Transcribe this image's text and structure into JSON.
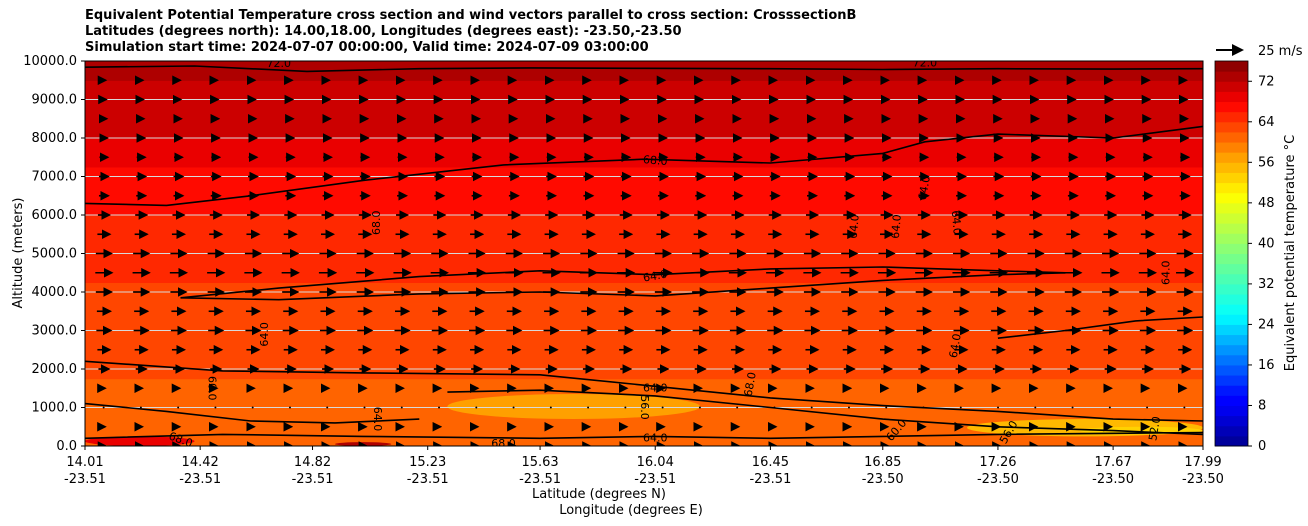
{
  "chart_data": {
    "type": "heatmap",
    "title_lines": [
      "Equivalent Potential Temperature cross section and wind vectors parallel to cross section: CrosssectionB",
      "Latitudes (degrees north): 14.00,18.00, Longitudes (degrees east): -23.50,-23.50",
      "Simulation start time: 2024-07-07 00:00:00, Valid time: 2024-07-09 03:00:00"
    ],
    "ylabel": "Altitude (meters)",
    "xlabel_lat": "Latitude (degrees N)",
    "xlabel_lon": "Longitude (degrees E)",
    "ylim": [
      0,
      10000
    ],
    "yticks": [
      "0.0",
      "1000.0",
      "2000.0",
      "3000.0",
      "4000.0",
      "5000.0",
      "6000.0",
      "7000.0",
      "8000.0",
      "9000.0",
      "10000.0"
    ],
    "xlim": [
      14.01,
      17.99
    ],
    "xticks": [
      {
        "lat": "14.01",
        "lon": "-23.51",
        "value": 14.01
      },
      {
        "lat": "14.42",
        "lon": "-23.51",
        "value": 14.42
      },
      {
        "lat": "14.82",
        "lon": "-23.51",
        "value": 14.82
      },
      {
        "lat": "15.23",
        "lon": "-23.51",
        "value": 15.23
      },
      {
        "lat": "15.63",
        "lon": "-23.51",
        "value": 15.63
      },
      {
        "lat": "16.04",
        "lon": "-23.51",
        "value": 16.04
      },
      {
        "lat": "16.45",
        "lon": "-23.51",
        "value": 16.45
      },
      {
        "lat": "16.85",
        "lon": "-23.50",
        "value": 16.85
      },
      {
        "lat": "17.26",
        "lon": "-23.50",
        "value": 17.26
      },
      {
        "lat": "17.67",
        "lon": "-23.50",
        "value": 17.67
      },
      {
        "lat": "17.99",
        "lon": "-23.50",
        "value": 17.99
      }
    ],
    "colorbar": {
      "label": "Equivalent potential temperature °C",
      "min": 0,
      "max": 76,
      "step": 2,
      "ticks": [
        "0",
        "8",
        "16",
        "24",
        "32",
        "40",
        "48",
        "56",
        "64",
        "72"
      ]
    },
    "quiver_key": "25 m/s",
    "field_profile": [
      {
        "alt": 0,
        "value": 61
      },
      {
        "alt": 500,
        "value": 60
      },
      {
        "alt": 1000,
        "value": 61
      },
      {
        "alt": 1500,
        "value": 61.5
      },
      {
        "alt": 2000,
        "value": 62.5
      },
      {
        "alt": 2500,
        "value": 63
      },
      {
        "alt": 3000,
        "value": 63.5
      },
      {
        "alt": 4000,
        "value": 63.5
      },
      {
        "alt": 4500,
        "value": 64.5
      },
      {
        "alt": 5000,
        "value": 65
      },
      {
        "alt": 6000,
        "value": 66
      },
      {
        "alt": 7000,
        "value": 67.5
      },
      {
        "alt": 7500,
        "value": 68.5
      },
      {
        "alt": 8000,
        "value": 70
      },
      {
        "alt": 9000,
        "value": 71.5
      },
      {
        "alt": 10000,
        "value": 72.5
      }
    ],
    "contours": [
      {
        "level": "72.0",
        "points": [
          [
            14.01,
            9840
          ],
          [
            14.4,
            9870
          ],
          [
            14.8,
            9730
          ],
          [
            15.2,
            9800
          ],
          [
            15.6,
            9820
          ],
          [
            16.0,
            9810
          ],
          [
            16.45,
            9800
          ],
          [
            16.85,
            9780
          ],
          [
            17.26,
            9800
          ],
          [
            17.67,
            9790
          ],
          [
            17.99,
            9800
          ]
        ]
      },
      {
        "level": "68.0",
        "points": [
          [
            14.01,
            6300
          ],
          [
            14.3,
            6250
          ],
          [
            14.6,
            6500
          ],
          [
            15.0,
            6900
          ],
          [
            15.5,
            7300
          ],
          [
            16.0,
            7450
          ],
          [
            16.45,
            7350
          ],
          [
            16.85,
            7600
          ],
          [
            17.0,
            7900
          ],
          [
            17.26,
            8100
          ],
          [
            17.67,
            8000
          ],
          [
            17.99,
            8300
          ]
        ]
      },
      {
        "level": "64.0",
        "points": [
          [
            14.35,
            3850
          ],
          [
            14.7,
            4100
          ],
          [
            15.2,
            4400
          ],
          [
            15.63,
            4550
          ],
          [
            16.04,
            4450
          ],
          [
            16.45,
            4600
          ],
          [
            16.85,
            4650
          ],
          [
            17.26,
            4550
          ],
          [
            17.5,
            4500
          ]
        ]
      },
      {
        "level": "64.0",
        "points": [
          [
            14.35,
            3850
          ],
          [
            14.7,
            3800
          ],
          [
            15.2,
            3950
          ],
          [
            15.63,
            4000
          ],
          [
            16.04,
            3900
          ],
          [
            16.45,
            4100
          ],
          [
            16.85,
            4300
          ],
          [
            17.26,
            4450
          ],
          [
            17.5,
            4500
          ]
        ]
      },
      {
        "level": "64.0",
        "points": [
          [
            17.26,
            2800
          ],
          [
            17.5,
            3000
          ],
          [
            17.75,
            3250
          ],
          [
            17.99,
            3350
          ]
        ]
      },
      {
        "level": "64.0",
        "points": [
          [
            14.01,
            2200
          ],
          [
            14.5,
            1950
          ],
          [
            15.0,
            1900
          ],
          [
            15.63,
            1850
          ],
          [
            16.04,
            1550
          ],
          [
            16.45,
            1250
          ],
          [
            16.85,
            1050
          ],
          [
            17.26,
            900
          ],
          [
            17.67,
            700
          ],
          [
            17.99,
            650
          ]
        ]
      },
      {
        "level": "60.0",
        "points": [
          [
            15.3,
            1400
          ],
          [
            15.63,
            1450
          ],
          [
            16.04,
            1300
          ],
          [
            16.45,
            1000
          ],
          [
            16.85,
            700
          ],
          [
            17.26,
            500
          ],
          [
            17.67,
            400
          ],
          [
            17.99,
            300
          ]
        ]
      },
      {
        "level": "64.0",
        "points": [
          [
            14.01,
            200
          ],
          [
            14.5,
            300
          ],
          [
            15.0,
            250
          ],
          [
            15.63,
            200
          ],
          [
            16.04,
            250
          ],
          [
            16.45,
            200
          ],
          [
            16.85,
            250
          ],
          [
            17.26,
            300
          ],
          [
            17.99,
            350
          ]
        ]
      },
      {
        "level": "60.0",
        "points": [
          [
            14.01,
            1100
          ],
          [
            14.3,
            900
          ],
          [
            14.6,
            650
          ],
          [
            14.9,
            600
          ],
          [
            15.2,
            700
          ]
        ]
      }
    ],
    "contour_labels": [
      {
        "text": "72.0",
        "x": 14.7,
        "y": 9920,
        "rot": 0
      },
      {
        "text": "72.0",
        "x": 17.0,
        "y": 9930,
        "rot": 0
      },
      {
        "text": "68.0",
        "x": 16.04,
        "y": 7400,
        "rot": 5
      },
      {
        "text": "68.0",
        "x": 15.05,
        "y": 5800,
        "rot": -90
      },
      {
        "text": "64.0",
        "x": 16.04,
        "y": 4400,
        "rot": -10
      },
      {
        "text": "64.0",
        "x": 17.0,
        "y": 6700,
        "rot": -80
      },
      {
        "text": "64.0",
        "x": 16.75,
        "y": 5700,
        "rot": -85
      },
      {
        "text": "64.0",
        "x": 16.9,
        "y": 5700,
        "rot": -85
      },
      {
        "text": "64.0",
        "x": 17.11,
        "y": 5800,
        "rot": 85
      },
      {
        "text": "64.0",
        "x": 17.86,
        "y": 4500,
        "rot": -90
      },
      {
        "text": "64.0",
        "x": 14.65,
        "y": 2900,
        "rot": -90
      },
      {
        "text": "64.0",
        "x": 17.11,
        "y": 2600,
        "rot": -80
      },
      {
        "text": "64.0",
        "x": 16.04,
        "y": 1500,
        "rot": 0
      },
      {
        "text": "68.0",
        "x": 16.38,
        "y": 1600,
        "rot": -80
      },
      {
        "text": "60.0",
        "x": 14.46,
        "y": 1500,
        "rot": 90
      },
      {
        "text": "64.0",
        "x": 15.05,
        "y": 700,
        "rot": 90
      },
      {
        "text": "56.0",
        "x": 16.0,
        "y": 1000,
        "rot": 90
      },
      {
        "text": "64.0",
        "x": 16.04,
        "y": 200,
        "rot": 0
      },
      {
        "text": "68.0",
        "x": 15.5,
        "y": 50,
        "rot": 0
      },
      {
        "text": "68.0",
        "x": 14.35,
        "y": 150,
        "rot": 20
      },
      {
        "text": "60.0",
        "x": 16.9,
        "y": 400,
        "rot": -50
      },
      {
        "text": "56.0",
        "x": 17.3,
        "y": 350,
        "rot": -60
      },
      {
        "text": "52.0",
        "x": 17.82,
        "y": 450,
        "rot": -80
      }
    ],
    "wind_levels_m": [
      0,
      500,
      1000,
      1500,
      2000,
      2500,
      3000,
      3500,
      4000,
      4500,
      5000,
      5500,
      6000,
      6500,
      7000,
      7500,
      8000,
      8500,
      9000,
      9500
    ],
    "wind_speed_ms": [
      4,
      3,
      2,
      3,
      10,
      12,
      14,
      13,
      15,
      16,
      15,
      12,
      11,
      9,
      9,
      8,
      7,
      6,
      5,
      4
    ],
    "wind_columns": 30
  }
}
